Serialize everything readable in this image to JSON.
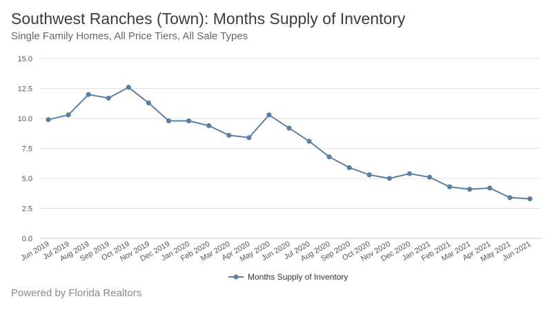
{
  "chart_title": "Southwest Ranches (Town): Months Supply of Inventory",
  "chart_subtitle": "Single Family Homes, All Price Tiers, All Sale Types",
  "credit": "Powered by Florida Realtors",
  "colors": {
    "series": "#5b7fa3",
    "grid": "#e2e2e2"
  },
  "chart_data": {
    "type": "line",
    "title": "Southwest Ranches (Town): Months Supply of Inventory",
    "subtitle": "Single Family Homes, All Price Tiers, All Sale Types",
    "xlabel": "",
    "ylabel": "",
    "ylim": [
      0,
      15
    ],
    "y_ticks": [
      "0.0",
      "2.5",
      "5.0",
      "7.5",
      "10.0",
      "12.5",
      "15.0"
    ],
    "grid": true,
    "legend_position": "bottom-center",
    "categories": [
      "Jun 2019",
      "Jul 2019",
      "Aug 2019",
      "Sep 2019",
      "Oct 2019",
      "Nov 2019",
      "Dec 2019",
      "Jan 2020",
      "Feb 2020",
      "Mar 2020",
      "Apr 2020",
      "May 2020",
      "Jun 2020",
      "Jul 2020",
      "Aug 2020",
      "Sep 2020",
      "Oct 2020",
      "Nov 2020",
      "Dec 2020",
      "Jan 2021",
      "Feb 2021",
      "Mar 2021",
      "Apr 2021",
      "May 2021",
      "Jun 2021"
    ],
    "series": [
      {
        "name": "Months Supply of Inventory",
        "values": [
          9.9,
          10.3,
          12.0,
          11.7,
          12.6,
          11.3,
          9.8,
          9.8,
          9.4,
          8.6,
          8.4,
          10.3,
          9.2,
          8.1,
          6.8,
          5.9,
          5.3,
          5.0,
          5.4,
          5.1,
          4.3,
          4.1,
          4.2,
          3.4,
          3.3
        ]
      }
    ]
  }
}
